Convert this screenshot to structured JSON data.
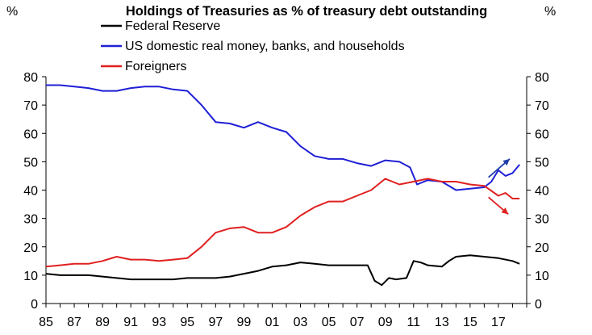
{
  "chart_data": {
    "type": "line",
    "title": "Holdings of Treasuries as % of treasury debt outstanding",
    "left_unit": "%",
    "right_unit": "%",
    "ylim": [
      0,
      80
    ],
    "y_ticks": [
      "0",
      "10",
      "20",
      "30",
      "40",
      "50",
      "60",
      "70",
      "80"
    ],
    "x_range": [
      1985,
      2019
    ],
    "x_ticks": [
      "85",
      "87",
      "89",
      "91",
      "93",
      "95",
      "97",
      "99",
      "01",
      "03",
      "05",
      "07",
      "09",
      "11",
      "13",
      "15",
      "17"
    ],
    "legend_position": "top-left",
    "series": [
      {
        "name": "Federal Reserve",
        "color": "#000000",
        "x": [
          1985,
          1986,
          1987,
          1988,
          1989,
          1990,
          1991,
          1992,
          1993,
          1994,
          1995,
          1996,
          1997,
          1998,
          1999,
          2000,
          2001,
          2002,
          2003,
          2004,
          2005,
          2006,
          2007,
          2007.75,
          2008.25,
          2008.75,
          2009.25,
          2009.75,
          2010.5,
          2011.0,
          2011.5,
          2012,
          2013,
          2013.5,
          2014,
          2015,
          2016,
          2017,
          2018,
          2018.5
        ],
        "values": [
          10.5,
          10,
          10,
          10,
          9.5,
          9,
          8.5,
          8.5,
          8.5,
          8.5,
          9,
          9,
          9,
          9.5,
          10.5,
          11.5,
          13,
          13.5,
          14.5,
          14,
          13.5,
          13.5,
          13.5,
          13.5,
          8,
          6.5,
          9,
          8.5,
          9,
          15,
          14.5,
          13.5,
          13,
          15,
          16.5,
          17,
          16.5,
          16,
          15,
          14
        ]
      },
      {
        "name": "US domestic real money, banks, and households",
        "color": "#1f1fd6",
        "x": [
          1985,
          1986,
          1987,
          1988,
          1989,
          1990,
          1991,
          1992,
          1993,
          1994,
          1995,
          1996,
          1997,
          1998,
          1999,
          2000,
          2001,
          2002,
          2003,
          2004,
          2005,
          2006,
          2007,
          2008,
          2009,
          2010,
          2010.75,
          2011.25,
          2012,
          2013,
          2014,
          2015,
          2016,
          2016.5,
          2017,
          2017.5,
          2018,
          2018.5
        ],
        "values": [
          77,
          77,
          76.5,
          76,
          75,
          75,
          76,
          76.5,
          76.5,
          75.5,
          75,
          70,
          64,
          63.5,
          62,
          64,
          62,
          60.5,
          55.5,
          52,
          51,
          51,
          49.5,
          48.5,
          50.5,
          50,
          48,
          42,
          43.5,
          43,
          40,
          40.5,
          41,
          43,
          47,
          45,
          46,
          49
        ]
      },
      {
        "name": "Foreigners",
        "color": "#e02020",
        "x": [
          1985,
          1986,
          1987,
          1988,
          1989,
          1990,
          1991,
          1992,
          1993,
          1994,
          1995,
          1996,
          1997,
          1998,
          1999,
          2000,
          2001,
          2002,
          2003,
          2004,
          2005,
          2006,
          2007,
          2008,
          2009,
          2010,
          2011,
          2012,
          2013,
          2014,
          2015,
          2016,
          2017,
          2017.5,
          2018,
          2018.5
        ],
        "values": [
          13,
          13.5,
          14,
          14,
          15,
          16.5,
          15.5,
          15.5,
          15,
          15.5,
          16,
          20,
          25,
          26.5,
          27,
          25,
          25,
          27,
          31,
          34,
          36,
          36,
          38,
          40,
          44,
          42,
          43,
          44,
          43,
          43,
          42,
          41.5,
          38,
          39,
          37,
          37
        ]
      }
    ],
    "annotations": [
      {
        "type": "arrow",
        "color": "#1f3fa8",
        "from": [
          2016.3,
          44.5
        ],
        "to": [
          2017.8,
          51
        ]
      },
      {
        "type": "arrow",
        "color": "#e02020",
        "from": [
          2016.3,
          37.5
        ],
        "to": [
          2017.7,
          31.5
        ]
      }
    ]
  }
}
